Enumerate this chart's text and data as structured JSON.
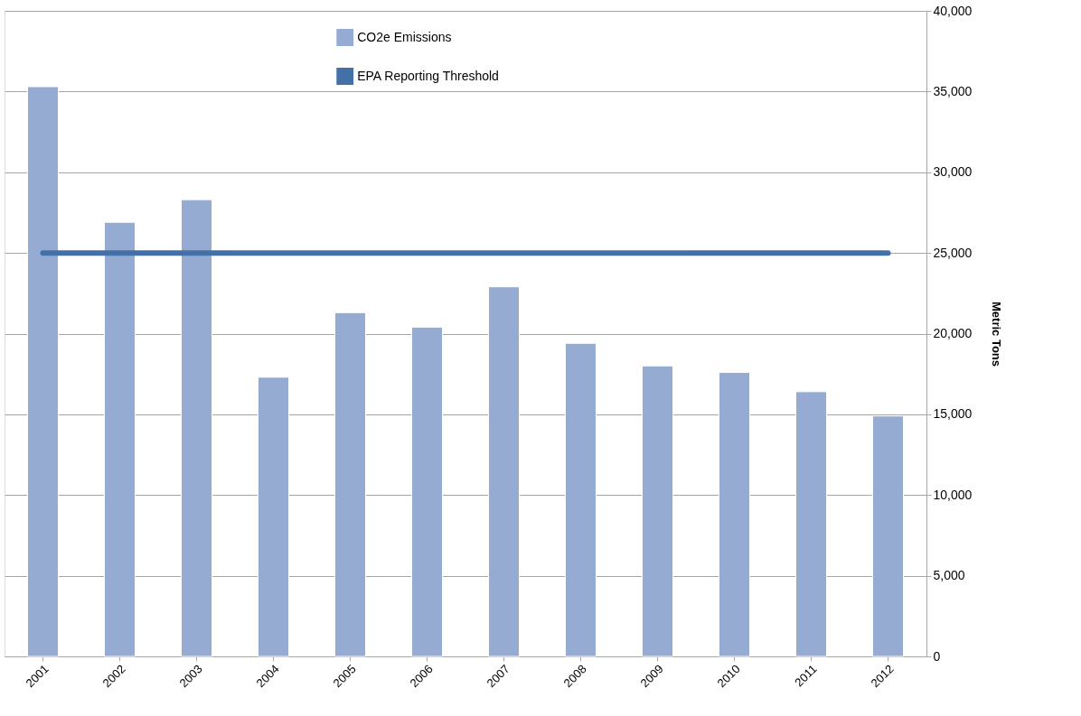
{
  "chart_data": {
    "type": "bar",
    "categories": [
      "2001",
      "2002",
      "2003",
      "2004",
      "2005",
      "2006",
      "2007",
      "2008",
      "2009",
      "2010",
      "2011",
      "2012"
    ],
    "series": [
      {
        "name": "CO2e Emissions",
        "color": "#95abd2",
        "values": [
          35300,
          26900,
          28300,
          17300,
          21300,
          20400,
          22900,
          19400,
          18000,
          17600,
          16400,
          14900
        ]
      },
      {
        "name": "EPA Reporting Threshold",
        "type": "line",
        "color": "#4470a8",
        "values": [
          25000,
          25000,
          25000,
          25000,
          25000,
          25000,
          25000,
          25000,
          25000,
          25000,
          25000,
          25000
        ]
      }
    ],
    "ylabel": "Metric Tons",
    "ylim": [
      0,
      40000
    ],
    "yticks": [
      0,
      {
        "value": 5000,
        "label": "5,000"
      },
      {
        "value": 10000,
        "label": "10,000"
      },
      {
        "value": 15000,
        "label": "15,000"
      },
      {
        "value": 20000,
        "label": "20,000"
      },
      {
        "value": 25000,
        "label": "25,000"
      },
      {
        "value": 30000,
        "label": "30,000"
      },
      {
        "value": 35000,
        "label": "35,000"
      },
      {
        "value": 40000,
        "label": "40,000"
      }
    ],
    "grid": "y",
    "legend": "top"
  }
}
